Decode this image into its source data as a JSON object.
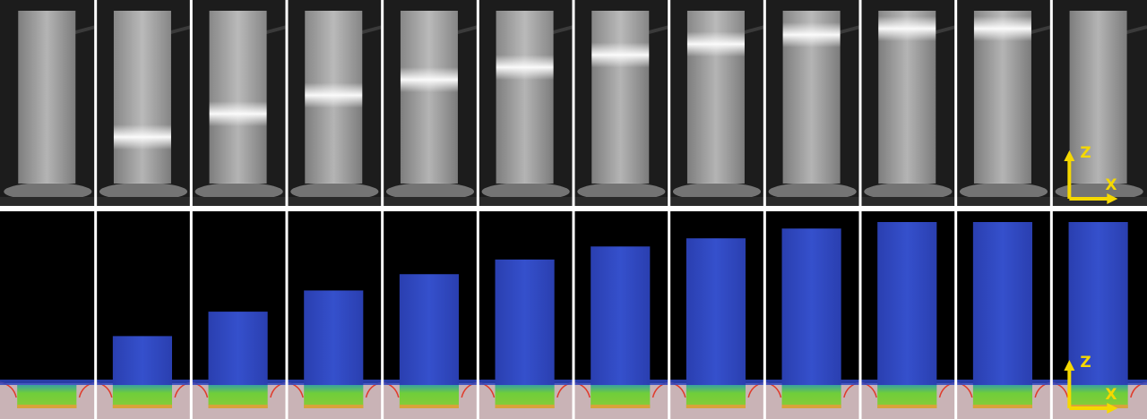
{
  "figure": {
    "rows": [
      {
        "name": "experiment-photos",
        "style": "grayscale-photo"
      },
      {
        "name": "simulation-renderings",
        "style": "color-simulation"
      }
    ],
    "frames": [
      {
        "band_level": null,
        "fill_level": 0.0
      },
      {
        "band_level": 0.3,
        "fill_level": 0.3
      },
      {
        "band_level": 0.45,
        "fill_level": 0.45
      },
      {
        "band_level": 0.57,
        "fill_level": 0.58
      },
      {
        "band_level": 0.67,
        "fill_level": 0.68
      },
      {
        "band_level": 0.75,
        "fill_level": 0.77
      },
      {
        "band_level": 0.83,
        "fill_level": 0.85
      },
      {
        "band_level": 0.9,
        "fill_level": 0.9
      },
      {
        "band_level": 0.96,
        "fill_level": 0.96
      },
      {
        "band_level": 1.0,
        "fill_level": 1.0
      },
      {
        "band_level": 1.0,
        "fill_level": 1.0
      },
      {
        "band_level": null,
        "fill_level": 1.0
      }
    ],
    "axis_labels": {
      "z": "Z",
      "x": "X"
    },
    "colors": {
      "divider": "#ffffff",
      "photo_background": "#1c1c1c",
      "photo_strip": "#9a9a9a",
      "photo_band": "#ffffff",
      "sim_background": "#000000",
      "sim_fluid": "#2f47c2",
      "sim_green": "#66c43a",
      "sim_orange": "#d8a33a",
      "sim_substrate": "#c9b3b6",
      "sim_meniscus": "#e03c2c",
      "axis_arrow": "#f5d800"
    }
  }
}
